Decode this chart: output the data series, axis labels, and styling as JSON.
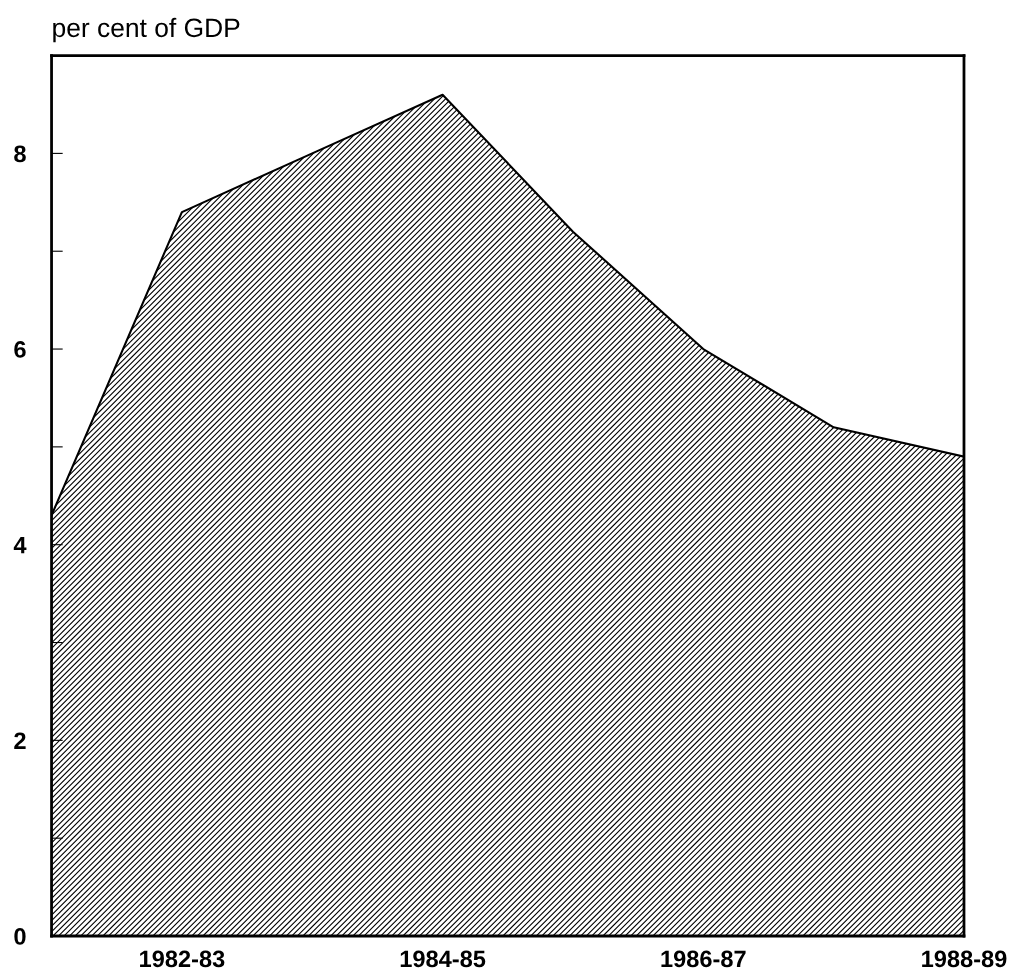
{
  "chart_data": {
    "type": "area",
    "ylabel": "per cent of GDP",
    "categories": [
      null,
      "1982-83",
      null,
      "1984-85",
      null,
      "1986-87",
      null,
      "1988-89"
    ],
    "series": [
      {
        "color": "#000000",
        "values": [
          4.3,
          7.4,
          8.0,
          8.6,
          7.2,
          6.0,
          5.2,
          4.9
        ]
      }
    ],
    "ylim": [
      0,
      9
    ],
    "yticks": [
      0,
      {
        "value": 1,
        "label": null
      },
      2,
      {
        "value": 3,
        "label": null
      },
      4,
      {
        "value": 5,
        "label": null
      },
      6,
      {
        "value": 7,
        "label": null
      },
      8
    ],
    "grid": false
  }
}
